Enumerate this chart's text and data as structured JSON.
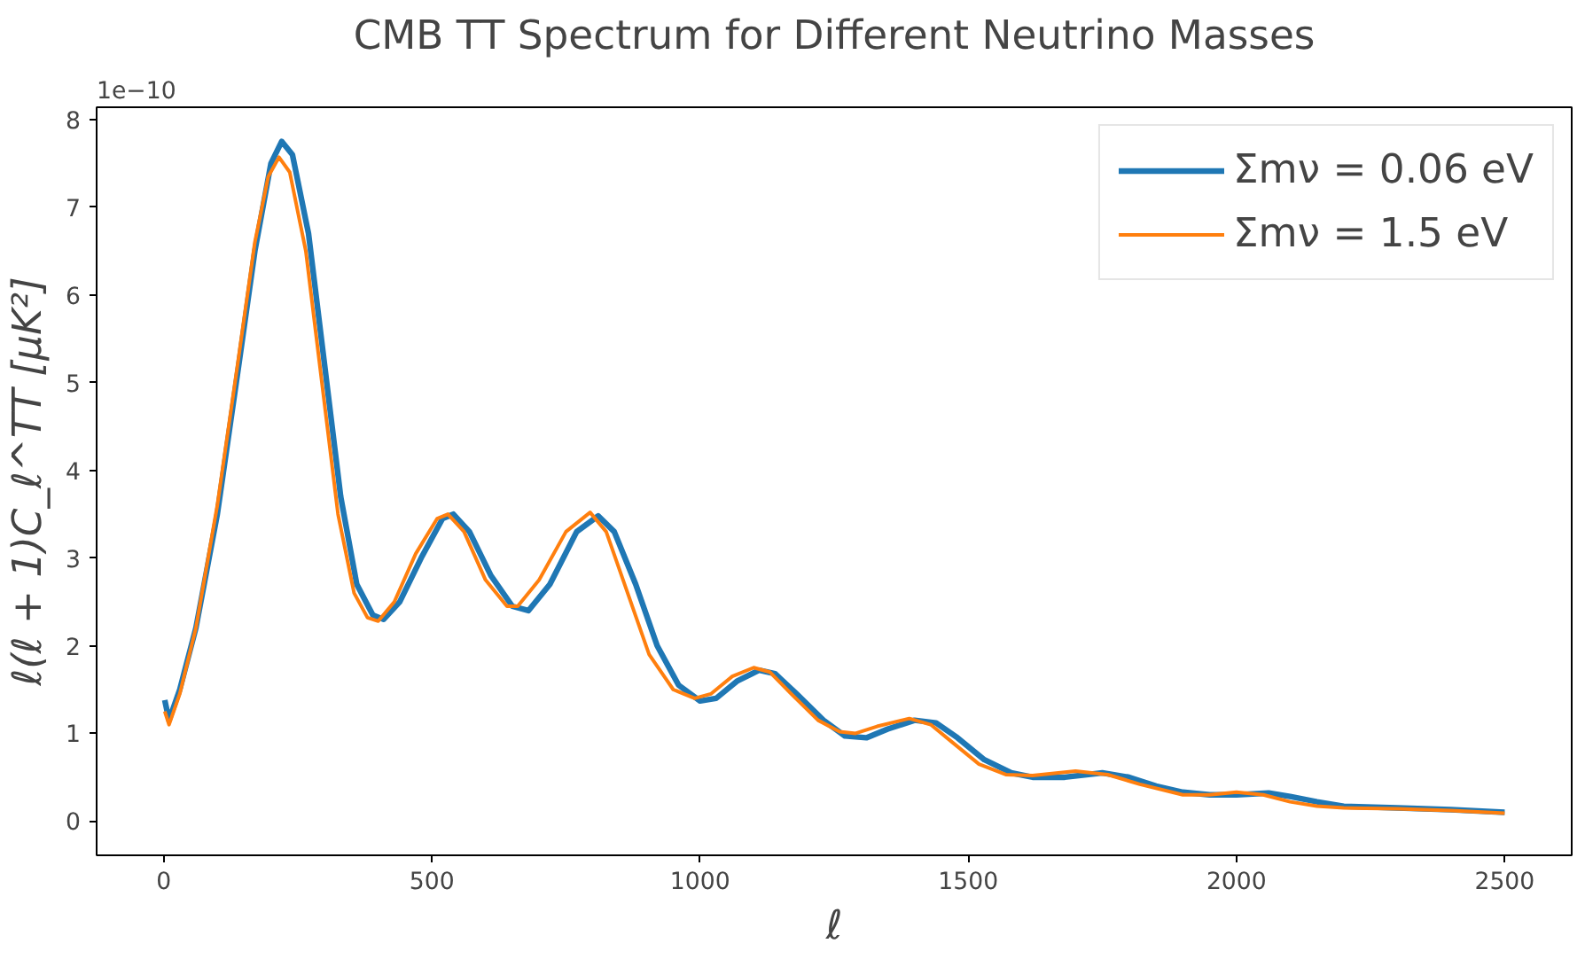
{
  "chart_data": {
    "type": "line",
    "title": "CMB TT Spectrum for Different Neutrino Masses",
    "xlabel": "ℓ",
    "ylabel": "ℓ(ℓ + 1)C_ℓ^TT [μK²]",
    "annotations": [
      "1e−10"
    ],
    "xlim": [
      -125,
      2625
    ],
    "ylim": [
      -0.39,
      8.14
    ],
    "xticks": [
      0,
      500,
      1000,
      1500,
      2000,
      2500
    ],
    "yticks": [
      0,
      1,
      2,
      3,
      4,
      5,
      6,
      7,
      8
    ],
    "grid": false,
    "legend": "top right",
    "series": [
      {
        "name": "Σmν = 0.06 eV",
        "color": "#1f77b4",
        "x": [
          2,
          10,
          30,
          60,
          100,
          140,
          170,
          200,
          220,
          240,
          270,
          300,
          330,
          360,
          390,
          410,
          440,
          480,
          520,
          540,
          570,
          610,
          650,
          680,
          720,
          770,
          810,
          840,
          880,
          920,
          960,
          1000,
          1030,
          1070,
          1110,
          1140,
          1180,
          1230,
          1270,
          1310,
          1350,
          1400,
          1440,
          1480,
          1530,
          1580,
          1620,
          1680,
          1750,
          1800,
          1850,
          1900,
          1950,
          2000,
          2060,
          2100,
          2150,
          2200,
          2300,
          2400,
          2500
        ],
        "values": [
          1.38,
          1.15,
          1.5,
          2.2,
          3.5,
          5.2,
          6.5,
          7.5,
          7.75,
          7.6,
          6.7,
          5.2,
          3.7,
          2.7,
          2.35,
          2.3,
          2.5,
          3.0,
          3.45,
          3.5,
          3.3,
          2.8,
          2.45,
          2.4,
          2.7,
          3.3,
          3.48,
          3.3,
          2.7,
          2.0,
          1.55,
          1.37,
          1.4,
          1.6,
          1.72,
          1.68,
          1.45,
          1.15,
          0.97,
          0.95,
          1.05,
          1.15,
          1.12,
          0.95,
          0.7,
          0.55,
          0.5,
          0.5,
          0.55,
          0.5,
          0.4,
          0.33,
          0.3,
          0.3,
          0.32,
          0.28,
          0.22,
          0.17,
          0.15,
          0.13,
          0.1
        ]
      },
      {
        "name": "Σmν = 1.5 eV",
        "color": "#ff7f0e",
        "x": [
          2,
          10,
          30,
          60,
          100,
          140,
          170,
          195,
          215,
          235,
          265,
          295,
          325,
          355,
          380,
          400,
          430,
          470,
          510,
          530,
          560,
          600,
          640,
          660,
          700,
          750,
          795,
          825,
          865,
          905,
          950,
          990,
          1020,
          1060,
          1100,
          1130,
          1170,
          1220,
          1260,
          1290,
          1330,
          1390,
          1430,
          1470,
          1520,
          1570,
          1620,
          1700,
          1760,
          1820,
          1900,
          1950,
          2000,
          2050,
          2100,
          2150,
          2200,
          2300,
          2400,
          2500
        ],
        "values": [
          1.25,
          1.1,
          1.45,
          2.2,
          3.6,
          5.3,
          6.6,
          7.35,
          7.57,
          7.4,
          6.5,
          5.0,
          3.5,
          2.6,
          2.32,
          2.28,
          2.5,
          3.05,
          3.45,
          3.5,
          3.3,
          2.75,
          2.45,
          2.45,
          2.75,
          3.3,
          3.52,
          3.3,
          2.6,
          1.9,
          1.5,
          1.4,
          1.45,
          1.65,
          1.75,
          1.7,
          1.45,
          1.15,
          1.02,
          1.0,
          1.08,
          1.17,
          1.1,
          0.9,
          0.65,
          0.53,
          0.52,
          0.57,
          0.53,
          0.42,
          0.3,
          0.3,
          0.33,
          0.3,
          0.22,
          0.17,
          0.15,
          0.14,
          0.12,
          0.09
        ]
      }
    ]
  }
}
